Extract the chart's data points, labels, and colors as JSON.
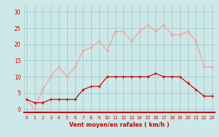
{
  "x": [
    0,
    1,
    2,
    3,
    4,
    5,
    6,
    7,
    8,
    9,
    10,
    11,
    12,
    13,
    14,
    15,
    16,
    17,
    18,
    19,
    20,
    21,
    22,
    23
  ],
  "vent_moyen": [
    3,
    2,
    2,
    3,
    3,
    3,
    3,
    6,
    7,
    7,
    10,
    10,
    10,
    10,
    10,
    10,
    11,
    10,
    10,
    10,
    8,
    6,
    4,
    4
  ],
  "rafales": [
    3,
    0,
    6,
    10,
    13,
    10,
    13,
    18,
    19,
    21,
    18,
    24,
    24,
    21,
    24,
    26,
    24,
    26,
    23,
    23,
    24,
    21,
    13,
    13
  ],
  "bg_color": "#cce8e8",
  "grid_color": "#aacccc",
  "line_moyen_color": "#cc0000",
  "line_rafales_color": "#ff9999",
  "xlabel": "Vent moyen/en rafales ( km/h )",
  "xlabel_color": "#cc0000",
  "yticks": [
    0,
    5,
    10,
    15,
    20,
    25,
    30
  ],
  "xlim": [
    -0.3,
    23.3
  ],
  "ylim": [
    -1,
    32
  ]
}
